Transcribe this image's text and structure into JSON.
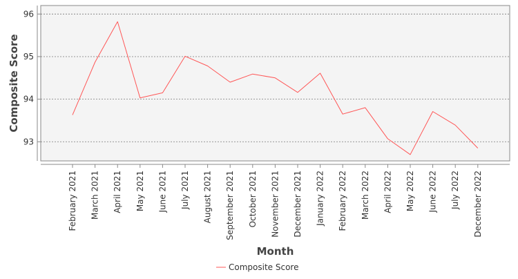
{
  "chart_data": {
    "type": "line",
    "title": "",
    "xlabel": "Month",
    "ylabel": "Composite Score",
    "categories": [
      "February 2021",
      "March 2021",
      "April 2021",
      "May 2021",
      "June 2021",
      "July 2021",
      "August 2021",
      "September 2021",
      "October 2021",
      "November 2021",
      "December 2021",
      "January 2022",
      "February 2022",
      "March 2022",
      "April 2022",
      "May 2022",
      "June 2022",
      "July 2022",
      "December 2022"
    ],
    "series": [
      {
        "name": "Composite Score",
        "color": "#ff5555",
        "values": [
          93.63,
          94.87,
          95.82,
          94.03,
          94.15,
          95.01,
          94.78,
          94.4,
          94.59,
          94.5,
          94.16,
          94.61,
          93.65,
          93.8,
          93.07,
          92.7,
          93.71,
          93.39,
          92.85
        ]
      }
    ],
    "yticks": [
      93,
      94,
      95,
      96
    ],
    "ylim": [
      92.55,
      96.2
    ],
    "grid": true,
    "legend_position": "bottom",
    "plot_background": "#f4f4f4"
  }
}
